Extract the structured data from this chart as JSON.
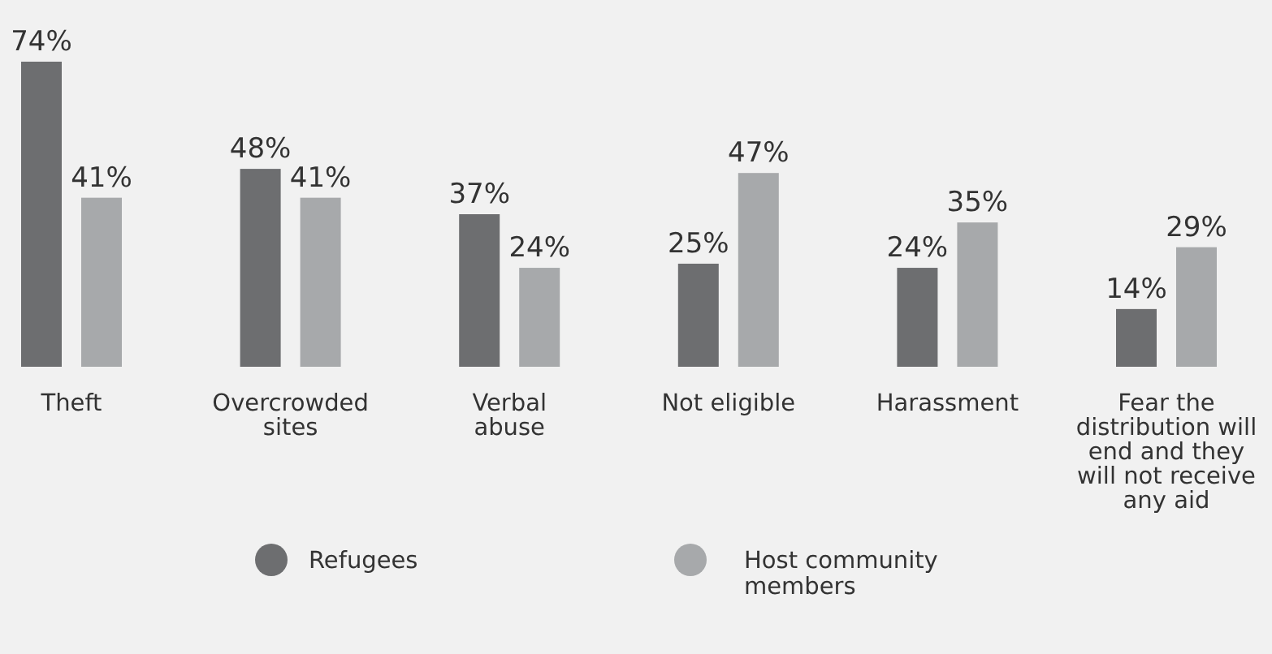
{
  "chart_data": {
    "type": "bar",
    "categories": [
      "Theft",
      "Overcrowded\nsites",
      "Verbal\nabuse",
      "Not eligible",
      "Harassment",
      "Fear the\ndistribution will\nend and they\nwill not receive\nany aid"
    ],
    "series": [
      {
        "name": "Refugees",
        "color": "#6d6e70",
        "values": [
          74,
          48,
          37,
          25,
          24,
          14
        ],
        "value_labels": [
          "74%",
          "48%",
          "37%",
          "25%",
          "24%",
          "14%"
        ]
      },
      {
        "name": "Host community\nmembers",
        "color": "#a7a9ab",
        "values": [
          41,
          41,
          24,
          47,
          35,
          29
        ],
        "value_labels": [
          "41%",
          "41%",
          "24%",
          "47%",
          "35%",
          "29%"
        ]
      }
    ],
    "legend": "bottom"
  }
}
